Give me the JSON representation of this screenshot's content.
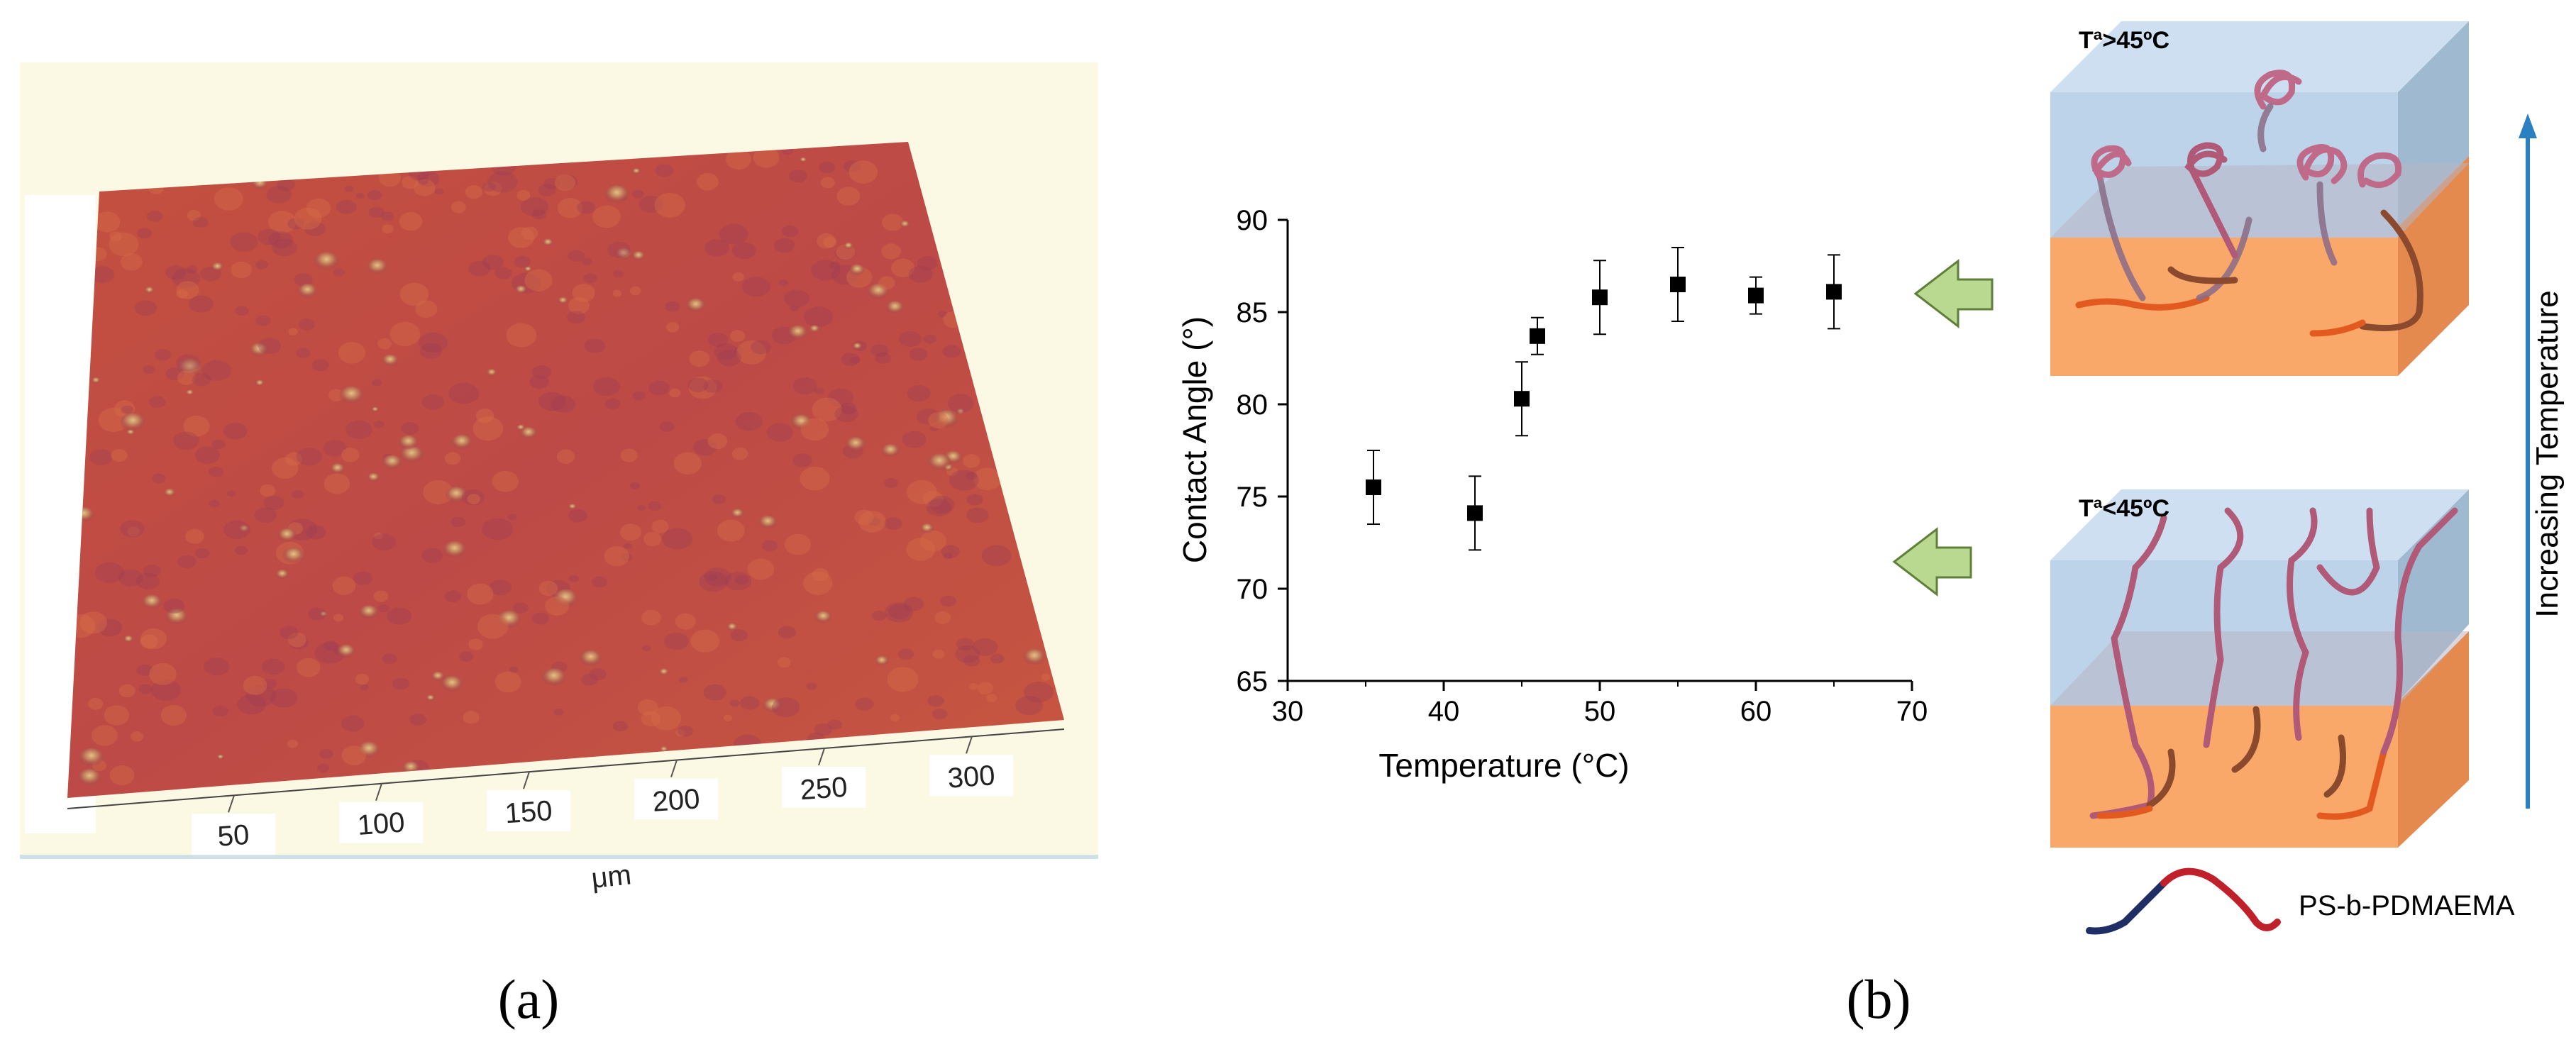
{
  "panels": {
    "a_label": "(a)",
    "b_label": "(b)"
  },
  "afm": {
    "x_ticks": [
      "50",
      "100",
      "150",
      "200",
      "250",
      "300"
    ],
    "unit_label": "μm",
    "colors": {
      "background": "#fbf8e3",
      "surface": "#c9503f",
      "surface_dark": "#8f3a4c",
      "highlight": "#d9c27a"
    }
  },
  "chart_data": {
    "type": "scatter",
    "xlabel": "Temperature (°C)",
    "ylabel": "Contact Angle (°)",
    "xlim": [
      30,
      70
    ],
    "ylim": [
      65,
      90
    ],
    "x_ticks": [
      30,
      40,
      50,
      60,
      70
    ],
    "y_ticks": [
      65,
      70,
      75,
      80,
      85,
      90
    ],
    "series": [
      {
        "marker": "square",
        "color": "#000000",
        "points": [
          {
            "x": 35.5,
            "y": 75.5,
            "err": 2.0
          },
          {
            "x": 42.0,
            "y": 74.1,
            "err": 2.0
          },
          {
            "x": 45.0,
            "y": 80.3,
            "err": 2.0
          },
          {
            "x": 46.0,
            "y": 83.7,
            "err": 1.0
          },
          {
            "x": 50.0,
            "y": 85.8,
            "err": 2.0
          },
          {
            "x": 55.0,
            "y": 86.5,
            "err": 2.0
          },
          {
            "x": 60.0,
            "y": 85.9,
            "err": 1.0
          },
          {
            "x": 65.0,
            "y": 86.1,
            "err": 2.0
          }
        ]
      }
    ]
  },
  "schematic": {
    "top_label": "Tª>45ºC",
    "bottom_label": "Tª<45ºC",
    "arrow_label": "Increasing Temperature",
    "legend_label": "PS-b-PDMAEMA",
    "colors": {
      "water": "#c5d9ef",
      "film": "#f9a86a",
      "chain": "#b05a78",
      "ps": "#1f2f66",
      "pdmaema": "#c0202a",
      "arrow": "#2a80c0",
      "green_arrow": "#b9d890"
    }
  }
}
